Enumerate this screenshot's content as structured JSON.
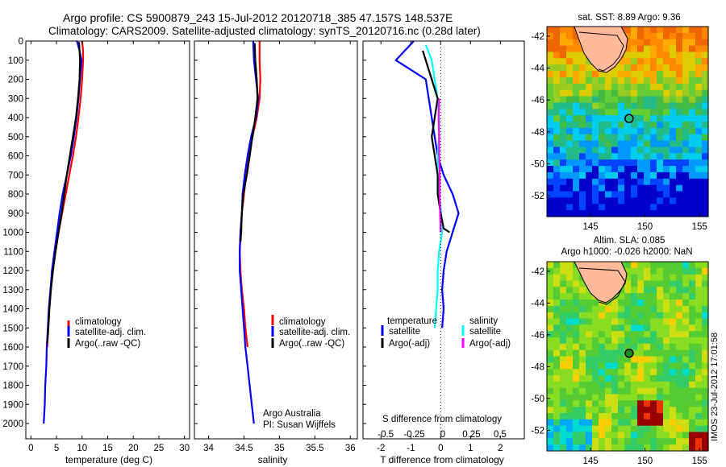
{
  "header": {
    "line1": "Argo profile: CS 5900879_243 15-Jul-2012 20120718_385 47.157S 148.537E",
    "line2": "Climatology: CARS2009. Satellite-adjusted climatology: synTS_20120716.nc (0.28d later)"
  },
  "colors": {
    "climatology": "#ff0000",
    "satellite": "#0000ff",
    "argo": "#000000",
    "s_satellite": "#00ffff",
    "s_argo": "#ff00ff",
    "land": "#ffbb99"
  },
  "icons": {
    "watermark": "imos-logo-icon"
  },
  "chart_data": [
    {
      "id": "temperature",
      "type": "line",
      "xlabel": "temperature (deg C)",
      "ylabel": "",
      "xlim": [
        -1,
        31
      ],
      "ylim": [
        2080,
        0
      ],
      "xticks": [
        "0",
        "5",
        "10",
        "15",
        "20",
        "25",
        "30"
      ],
      "xtick_values": [
        0,
        5,
        10,
        15,
        20,
        25,
        30
      ],
      "yticks": [
        "0",
        "100",
        "200",
        "300",
        "400",
        "500",
        "600",
        "700",
        "800",
        "900",
        "1000",
        "1100",
        "1200",
        "1300",
        "1400",
        "1500",
        "1600",
        "1700",
        "1800",
        "1900",
        "2000"
      ],
      "ytick_values": [
        0,
        100,
        200,
        300,
        400,
        500,
        600,
        700,
        800,
        900,
        1000,
        1100,
        1200,
        1300,
        1400,
        1500,
        1600,
        1700,
        1800,
        1900,
        2000
      ],
      "legend": [
        "climatology",
        "satellite-adj. clim.",
        "Argo(..raw -QC)"
      ],
      "series": [
        {
          "name": "climatology",
          "color_key": "climatology",
          "points": [
            [
              10,
              0
            ],
            [
              10.2,
              50
            ],
            [
              10.2,
              100
            ],
            [
              10,
              200
            ],
            [
              9.7,
              300
            ],
            [
              9.3,
              400
            ],
            [
              8.8,
              500
            ],
            [
              8.2,
              600
            ],
            [
              7.5,
              700
            ],
            [
              6.8,
              800
            ],
            [
              6.1,
              900
            ],
            [
              5.4,
              1000
            ],
            [
              4.8,
              1100
            ],
            [
              4.3,
              1200
            ],
            [
              3.9,
              1300
            ],
            [
              3.6,
              1400
            ],
            [
              3.4,
              1500
            ],
            [
              3.2,
              1600
            ]
          ]
        },
        {
          "name": "satellite-adj. clim.",
          "color_key": "satellite",
          "points": [
            [
              9.0,
              0
            ],
            [
              9.5,
              50
            ],
            [
              9.9,
              100
            ],
            [
              9.6,
              200
            ],
            [
              9.3,
              300
            ],
            [
              8.9,
              400
            ],
            [
              8.4,
              500
            ],
            [
              7.8,
              600
            ],
            [
              7.0,
              700
            ],
            [
              6.2,
              800
            ],
            [
              5.6,
              900
            ],
            [
              5.1,
              1000
            ],
            [
              4.6,
              1100
            ],
            [
              4.1,
              1200
            ],
            [
              3.8,
              1300
            ],
            [
              3.5,
              1400
            ],
            [
              3.3,
              1500
            ],
            [
              3.1,
              1600
            ],
            [
              3.0,
              1700
            ],
            [
              2.8,
              1800
            ],
            [
              2.7,
              1900
            ],
            [
              2.5,
              2000
            ]
          ]
        },
        {
          "name": "Argo(..raw -QC)",
          "color_key": "argo",
          "points": [
            [
              9.4,
              5
            ],
            [
              9.5,
              50
            ],
            [
              9.6,
              100
            ],
            [
              9.5,
              200
            ],
            [
              9.2,
              300
            ],
            [
              8.8,
              400
            ],
            [
              8.2,
              500
            ],
            [
              7.6,
              600
            ],
            [
              7.0,
              700
            ],
            [
              6.5,
              800
            ],
            [
              6.0,
              900
            ],
            [
              5.4,
              1000
            ],
            [
              4.8,
              1100
            ],
            [
              4.3,
              1200
            ],
            [
              3.9,
              1300
            ],
            [
              3.6,
              1400
            ],
            [
              3.4,
              1500
            ],
            [
              3.2,
              1580
            ]
          ]
        }
      ]
    },
    {
      "id": "salinity",
      "type": "line",
      "xlabel": "salinity",
      "ylabel": "",
      "xlim": [
        33.8,
        36.1
      ],
      "ylim": [
        2080,
        0
      ],
      "xticks": [
        "34",
        "34.5",
        "35",
        "35.5",
        "36"
      ],
      "xtick_values": [
        34,
        34.5,
        35,
        35.5,
        36
      ],
      "legend": [
        "climatology",
        "satellite-adj. clim.",
        "Argo(..raw -QC)"
      ],
      "annotation": [
        "Argo Australia",
        "PI: Susan Wijffels"
      ],
      "series": [
        {
          "name": "climatology",
          "color_key": "climatology",
          "points": [
            [
              34.72,
              0
            ],
            [
              34.72,
              100
            ],
            [
              34.73,
              200
            ],
            [
              34.72,
              300
            ],
            [
              34.68,
              400
            ],
            [
              34.62,
              500
            ],
            [
              34.57,
              600
            ],
            [
              34.53,
              700
            ],
            [
              34.5,
              800
            ],
            [
              34.47,
              900
            ],
            [
              34.45,
              1000
            ],
            [
              34.44,
              1100
            ],
            [
              34.45,
              1200
            ],
            [
              34.47,
              1300
            ],
            [
              34.5,
              1400
            ],
            [
              34.52,
              1500
            ],
            [
              34.55,
              1600
            ]
          ]
        },
        {
          "name": "satellite-adj. clim.",
          "color_key": "satellite",
          "points": [
            [
              34.63,
              0
            ],
            [
              34.64,
              100
            ],
            [
              34.67,
              200
            ],
            [
              34.7,
              300
            ],
            [
              34.67,
              400
            ],
            [
              34.6,
              500
            ],
            [
              34.55,
              600
            ],
            [
              34.51,
              700
            ],
            [
              34.48,
              800
            ],
            [
              34.47,
              900
            ],
            [
              34.45,
              1000
            ],
            [
              34.44,
              1100
            ],
            [
              34.44,
              1200
            ],
            [
              34.46,
              1300
            ],
            [
              34.48,
              1400
            ],
            [
              34.5,
              1500
            ],
            [
              34.52,
              1600
            ],
            [
              34.55,
              1700
            ],
            [
              34.58,
              1800
            ],
            [
              34.61,
              1900
            ],
            [
              34.64,
              2000
            ]
          ]
        },
        {
          "name": "Argo(..raw -QC)",
          "color_key": "argo",
          "points": [
            [
              34.65,
              10
            ],
            [
              34.66,
              100
            ],
            [
              34.68,
              200
            ],
            [
              34.69,
              300
            ],
            [
              34.66,
              400
            ],
            [
              34.62,
              500
            ],
            [
              34.58,
              600
            ],
            [
              34.54,
              700
            ],
            [
              34.49,
              800
            ],
            [
              34.47,
              900
            ],
            [
              34.46,
              1000
            ],
            [
              34.45,
              1050
            ]
          ]
        }
      ]
    },
    {
      "id": "difference",
      "type": "line",
      "xlabel": "T difference from climatology",
      "top_axis_label": "S difference from climatology",
      "xlim": [
        -2.6,
        2.8
      ],
      "ylim": [
        2080,
        0
      ],
      "xticks": [
        "-2",
        "-1",
        "0",
        "1",
        "2"
      ],
      "xtick_values": [
        -2,
        -1,
        0,
        1,
        2
      ],
      "sticks": [
        "-0.5",
        "-0.25",
        "0",
        "0.25",
        "0.5"
      ],
      "stick_values": [
        -0.5,
        -0.25,
        0,
        0.25,
        0.5
      ],
      "legend_headers": [
        "temperature",
        "salinity"
      ],
      "legend": [
        "satellite",
        "Argo(-adj)",
        "satellite",
        "Argo(-adj)"
      ],
      "series": [
        {
          "name": "satellite",
          "quantity": "temperature",
          "color_key": "satellite",
          "points": [
            [
              -0.9,
              0
            ],
            [
              -1.5,
              100
            ],
            [
              -0.5,
              200
            ],
            [
              -0.4,
              300
            ],
            [
              -0.3,
              400
            ],
            [
              -0.2,
              500
            ],
            [
              -0.1,
              600
            ],
            [
              0.1,
              700
            ],
            [
              0.4,
              800
            ],
            [
              0.6,
              900
            ],
            [
              0.4,
              1000
            ],
            [
              0.2,
              1100
            ],
            [
              0.1,
              1200
            ],
            [
              0.05,
              1300
            ],
            [
              0.1,
              1400
            ],
            [
              0.05,
              1500
            ]
          ]
        },
        {
          "name": "satellite",
          "quantity": "salinity",
          "color_key": "s_satellite",
          "points": [
            [
              -0.5,
              20
            ],
            [
              -0.3,
              100
            ],
            [
              -0.2,
              200
            ],
            [
              -0.1,
              300
            ],
            [
              -0.05,
              400
            ],
            [
              -0.05,
              500
            ],
            [
              -0.1,
              600
            ],
            [
              -0.1,
              700
            ],
            [
              -0.05,
              800
            ],
            [
              0.02,
              900
            ],
            [
              0.05,
              1000
            ],
            [
              -0.05,
              1100
            ],
            [
              -0.1,
              1200
            ],
            [
              -0.1,
              1300
            ],
            [
              -0.15,
              1400
            ],
            [
              -0.2,
              1500
            ]
          ]
        },
        {
          "name": "Argo(-adj)",
          "quantity": "temperature",
          "color_key": "argo",
          "points": [
            [
              -0.6,
              50
            ],
            [
              -0.3,
              200
            ],
            [
              -0.1,
              300
            ],
            [
              -0.2,
              400
            ],
            [
              -0.3,
              500
            ],
            [
              -0.2,
              600
            ],
            [
              -0.1,
              700
            ],
            [
              -0.1,
              800
            ],
            [
              0.0,
              900
            ],
            [
              0.1,
              980
            ],
            [
              0.3,
              1000
            ]
          ]
        },
        {
          "name": "Argo(-adj)",
          "quantity": "salinity",
          "color_key": "s_argo",
          "points": [
            [
              -0.05,
              300
            ],
            [
              -0.07,
              400
            ],
            [
              -0.05,
              500
            ],
            [
              -0.05,
              600
            ],
            [
              -0.03,
              700
            ],
            [
              -0.03,
              800
            ],
            [
              -0.02,
              900
            ],
            [
              0.0,
              1000
            ]
          ]
        }
      ]
    },
    {
      "id": "sst_map",
      "type": "heatmap",
      "title": "sat. SST: 8.89 Argo: 9.36",
      "xlim": [
        141,
        155.8
      ],
      "ylim": [
        -53.3,
        -41.4
      ],
      "xticks": [
        "145",
        "150",
        "155"
      ],
      "xtick_values": [
        145,
        150,
        155
      ],
      "yticks": [
        "-42",
        "-44",
        "-46",
        "-48",
        "-50",
        "-52"
      ],
      "ytick_values": [
        -42,
        -44,
        -46,
        -48,
        -50,
        -52
      ],
      "marker": {
        "lon": 148.537,
        "lat": -47.157
      }
    },
    {
      "id": "sla_map",
      "type": "heatmap",
      "title": [
        "Altim. SLA: 0.085",
        "Argo h1000: -0.026 h2000: NaN"
      ],
      "xlim": [
        141,
        155.8
      ],
      "ylim": [
        -53.3,
        -41.4
      ],
      "xticks": [
        "145",
        "150",
        "155"
      ],
      "xtick_values": [
        145,
        150,
        155
      ],
      "yticks": [
        "-42",
        "-44",
        "-46",
        "-48",
        "-50",
        "-52"
      ],
      "ytick_values": [
        -42,
        -44,
        -46,
        -48,
        -50,
        -52
      ],
      "marker": {
        "lon": 148.537,
        "lat": -47.157
      }
    }
  ],
  "watermark": "IMOS 23-Jul-2012 17:01:58"
}
